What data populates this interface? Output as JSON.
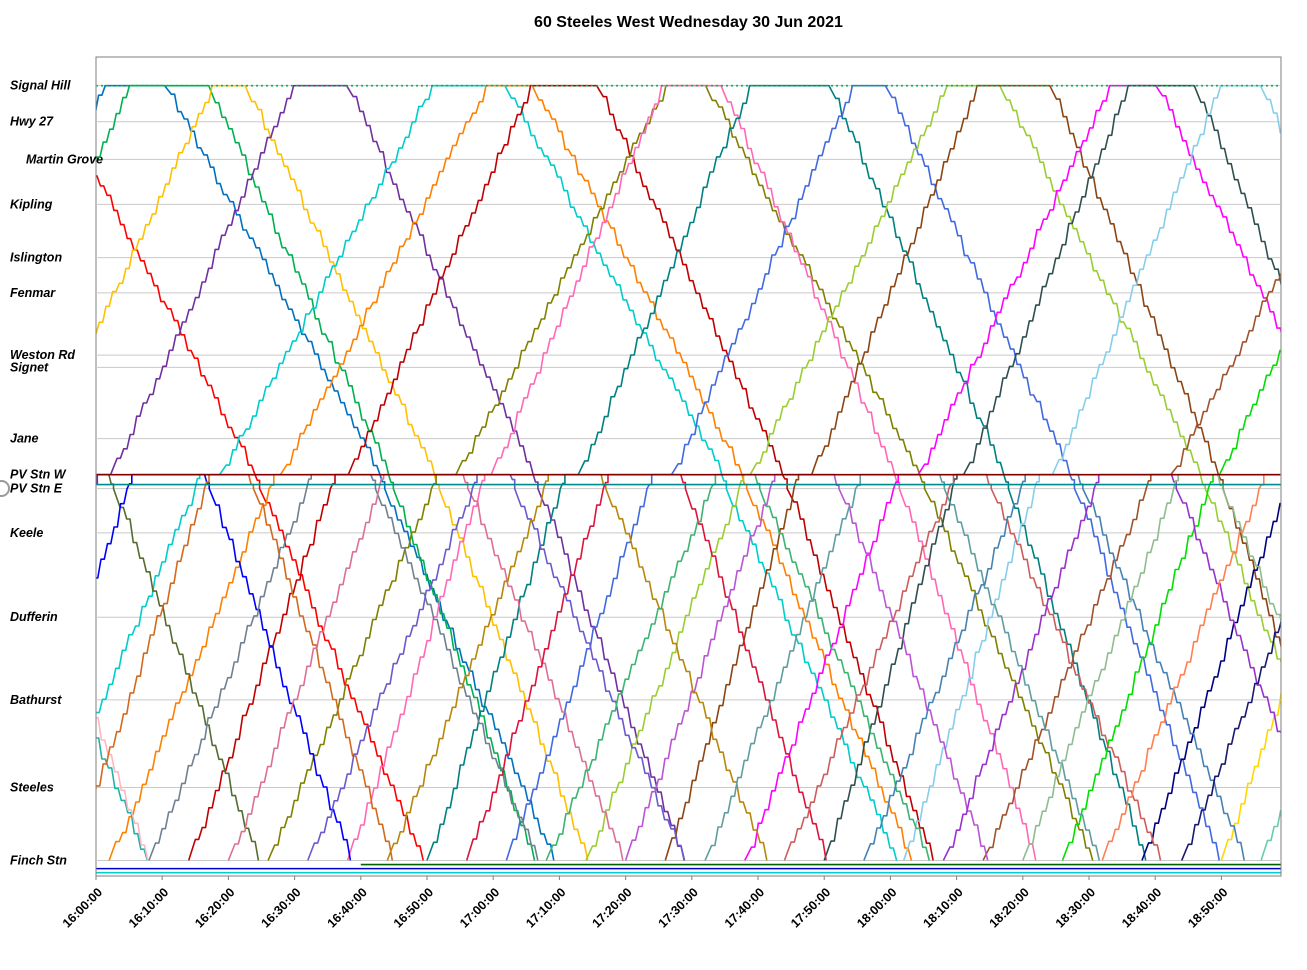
{
  "page": {
    "title": "60 Steeles West Wednesday 30 Jun 2021"
  },
  "icons": {
    "left_edge_marker": "partial-circle"
  },
  "chart_data": {
    "type": "line",
    "subtype": "marey-time-distance",
    "title": "60 Steeles West Wednesday 30 Jun 2021",
    "x_min": 0,
    "x_max": 179,
    "x_ticks": [
      {
        "t": 0,
        "label": "16:00:00"
      },
      {
        "t": 10,
        "label": "16:10:00"
      },
      {
        "t": 20,
        "label": "16:20:00"
      },
      {
        "t": 30,
        "label": "16:30:00"
      },
      {
        "t": 40,
        "label": "16:40:00"
      },
      {
        "t": 50,
        "label": "16:50:00"
      },
      {
        "t": 60,
        "label": "17:00:00"
      },
      {
        "t": 70,
        "label": "17:10:00"
      },
      {
        "t": 80,
        "label": "17:20:00"
      },
      {
        "t": 90,
        "label": "17:30:00"
      },
      {
        "t": 100,
        "label": "17:40:00"
      },
      {
        "t": 110,
        "label": "17:50:00"
      },
      {
        "t": 120,
        "label": "18:00:00"
      },
      {
        "t": 130,
        "label": "18:10:00"
      },
      {
        "t": 140,
        "label": "18:20:00"
      },
      {
        "t": 150,
        "label": "18:30:00"
      },
      {
        "t": 160,
        "label": "18:40:00"
      },
      {
        "t": 170,
        "label": "18:50:00"
      }
    ],
    "stations": [
      {
        "name": "Signal Hill",
        "pos": 0.035
      },
      {
        "name": "Hwy 27",
        "pos": 0.079
      },
      {
        "name": "Martin Grove",
        "pos": 0.125,
        "indent": 1
      },
      {
        "name": "Kipling",
        "pos": 0.18
      },
      {
        "name": "Islington",
        "pos": 0.245
      },
      {
        "name": "Fenmar",
        "pos": 0.288
      },
      {
        "name": "Weston Rd",
        "pos": 0.364
      },
      {
        "name": "Signet",
        "pos": 0.379
      },
      {
        "name": "Jane",
        "pos": 0.466
      },
      {
        "name": "PV Stn W",
        "pos": 0.51
      },
      {
        "name": "PV Stn E",
        "pos": 0.527
      },
      {
        "name": "Keele",
        "pos": 0.581
      },
      {
        "name": "Dufferin",
        "pos": 0.684
      },
      {
        "name": "Bathurst",
        "pos": 0.785
      },
      {
        "name": "Steeles",
        "pos": 0.892
      },
      {
        "name": "Finch Stn",
        "pos": 0.981
      }
    ],
    "route_positions": {
      "finch": 0.981,
      "pv_e": 0.527,
      "pv_w": 0.51,
      "signal_hill": 0.035
    },
    "run_times_min": {
      "finch_to_pv": 21,
      "pv_to_signal_hill": 27
    },
    "trips": [
      {
        "c": "#FF0000",
        "d": -70,
        "b": "L",
        "pv": 1,
        "lay": 6
      },
      {
        "c": "#0070C0",
        "d": -58,
        "b": "L",
        "pv": 2,
        "lay": 9
      },
      {
        "c": "#00B050",
        "d": -46,
        "b": "L",
        "pv": 3,
        "lay": 12
      },
      {
        "c": "#FFC000",
        "d": -34,
        "b": "L",
        "pv": 1,
        "lay": 5
      },
      {
        "c": "#7030A0",
        "d": -22,
        "b": "L",
        "pv": 2,
        "lay": 8
      },
      {
        "c": "#00CCCC",
        "d": -10,
        "b": "L",
        "pv": 3,
        "lay": 11
      },
      {
        "c": "#FF8000",
        "d": 2,
        "b": "L",
        "pv": 1,
        "lay": 7
      },
      {
        "c": "#C00000",
        "d": 14,
        "b": "L",
        "pv": 2,
        "lay": 10
      },
      {
        "c": "#808000",
        "d": 26,
        "b": "L",
        "pv": 3,
        "lay": 6
      },
      {
        "c": "#FF69B4",
        "d": 38,
        "b": "L",
        "pv": 1,
        "lay": 9
      },
      {
        "c": "#008080",
        "d": 50,
        "b": "L",
        "pv": 2,
        "lay": 12
      },
      {
        "c": "#4169E1",
        "d": 62,
        "b": "L",
        "pv": 3,
        "lay": 5
      },
      {
        "c": "#9ACD32",
        "d": 74,
        "b": "L",
        "pv": 1,
        "lay": 8
      },
      {
        "c": "#8B4513",
        "d": 86,
        "b": "L",
        "pv": 2,
        "lay": 11
      },
      {
        "c": "#FF00FF",
        "d": 98,
        "b": "L",
        "pv": 3,
        "lay": 7
      },
      {
        "c": "#2F4F4F",
        "d": 110,
        "b": "L",
        "pv": 1,
        "lay": 10
      },
      {
        "c": "#87CEEB",
        "d": 122,
        "b": "L",
        "pv": 2,
        "lay": 6
      },
      {
        "c": "#A0522D",
        "d": 134,
        "b": "L",
        "pv": 3,
        "lay": 9
      },
      {
        "c": "#00E000",
        "d": 146,
        "b": "L",
        "pv": 1,
        "lay": 12
      },
      {
        "c": "#000080",
        "d": 158,
        "b": "L",
        "pv": 2,
        "lay": 5
      },
      {
        "c": "#FFD700",
        "d": 170,
        "b": "L",
        "pv": 3,
        "lay": 8
      },
      {
        "c": "#800000",
        "d": -64,
        "b": "S",
        "lay": 7
      },
      {
        "c": "#20B2AA",
        "d": -52,
        "b": "S",
        "lay": 10
      },
      {
        "c": "#FFB6C1",
        "d": -40,
        "b": "S",
        "lay": 5
      },
      {
        "c": "#556B2F",
        "d": -28,
        "b": "S",
        "lay": 8
      },
      {
        "c": "#0000FF",
        "d": -16,
        "b": "S",
        "lay": 11
      },
      {
        "c": "#D2691E",
        "d": -4,
        "b": "S",
        "lay": 6
      },
      {
        "c": "#708090",
        "d": 8,
        "b": "S",
        "lay": 9
      },
      {
        "c": "#DB7093",
        "d": 20,
        "b": "S",
        "lay": 12
      },
      {
        "c": "#6A5ACD",
        "d": 32,
        "b": "S",
        "lay": 5
      },
      {
        "c": "#B8860B",
        "d": 44,
        "b": "S",
        "lay": 8
      },
      {
        "c": "#DC143C",
        "d": 56,
        "b": "S",
        "lay": 11
      },
      {
        "c": "#3CB371",
        "d": 68,
        "b": "S",
        "lay": 6
      },
      {
        "c": "#BA55D3",
        "d": 80,
        "b": "S",
        "lay": 9
      },
      {
        "c": "#5F9EA0",
        "d": 92,
        "b": "S",
        "lay": 12
      },
      {
        "c": "#CD5C5C",
        "d": 104,
        "b": "S",
        "lay": 5
      },
      {
        "c": "#4682B4",
        "d": 116,
        "b": "S",
        "lay": 8
      },
      {
        "c": "#9932CC",
        "d": 128,
        "b": "S",
        "lay": 11
      },
      {
        "c": "#8FBC8F",
        "d": 140,
        "b": "S",
        "lay": 6
      },
      {
        "c": "#FF7F50",
        "d": 152,
        "b": "S",
        "lay": 9
      },
      {
        "c": "#191970",
        "d": 164,
        "b": "S",
        "lay": 12
      },
      {
        "c": "#66CDAA",
        "d": 176,
        "b": "S",
        "lay": 5
      }
    ],
    "flat_lines": [
      {
        "color": "#00B050",
        "pos": 0.035,
        "t0": 0,
        "t1": 179,
        "dash": true
      },
      {
        "color": "#800000",
        "pos": 0.51,
        "t0": 0,
        "t1": 179
      },
      {
        "color": "#008B8B",
        "pos": 0.522,
        "t0": 0,
        "t1": 179
      },
      {
        "color": "#00CED1",
        "pos": 0.996,
        "t0": 0,
        "t1": 179
      },
      {
        "color": "#0000CC",
        "pos": 0.991,
        "t0": 0,
        "t1": 179
      },
      {
        "color": "#006400",
        "pos": 0.986,
        "t0": 40,
        "t1": 179
      }
    ]
  }
}
